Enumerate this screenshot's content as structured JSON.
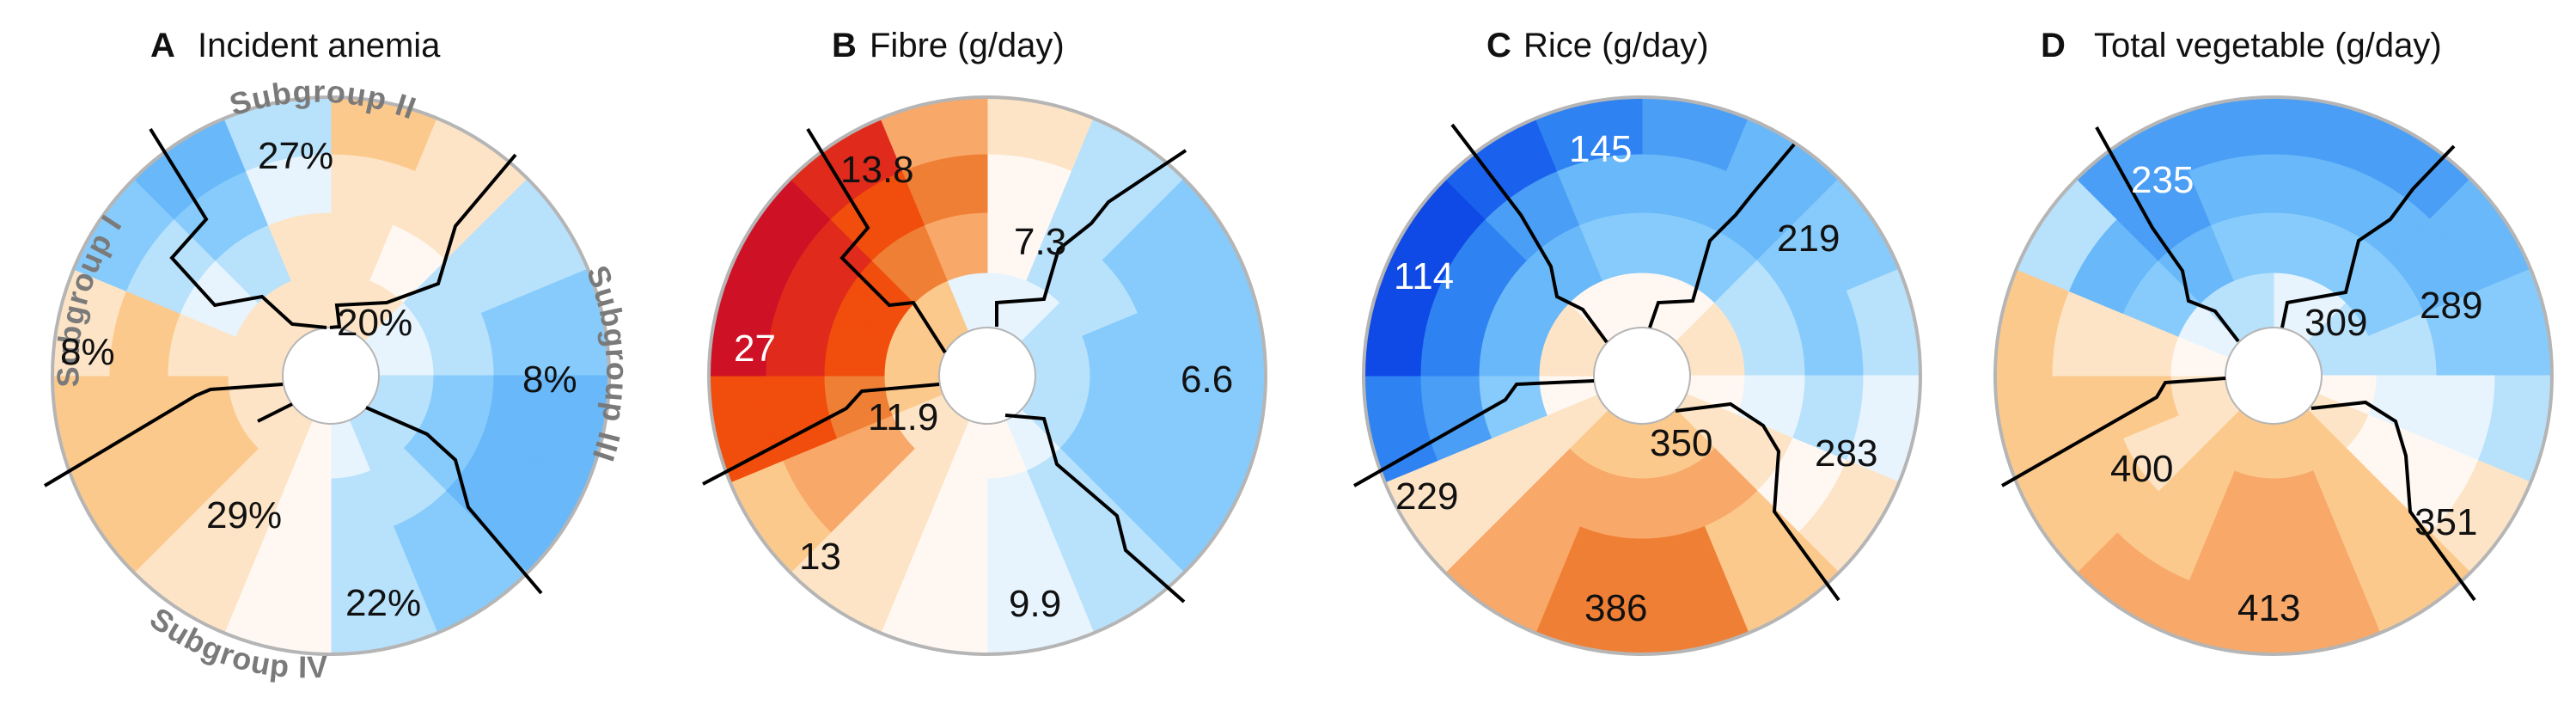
{
  "colors": {
    "orange_ramp": [
      "#fff8f2",
      "#fde4c6",
      "#fcc98d",
      "#f8a868",
      "#f07f36",
      "#f14d0c",
      "#e02b1c",
      "#cf1126"
    ],
    "blue_ramp": [
      "#e7f4fd",
      "#b8e1fc",
      "#86cbfb",
      "#69b8f9",
      "#4a9ef5",
      "#2f82f2",
      "#1a62ee",
      "#0f4ae6"
    ],
    "ring_outline": "#b5b5b5",
    "tree_line": "#000000",
    "subgroup_label": "#7a7a7a"
  },
  "chart_data": [
    {
      "type": "heatmap",
      "panel": "A",
      "title": "Incident anemia",
      "layout": "circular",
      "subgroups": [
        "Subgroup I",
        "Subgroup II",
        "Subgroup III",
        "Subgroup IV"
      ],
      "labels": [
        {
          "text": "27%",
          "subgroup": "Subgroup II"
        },
        {
          "text": "20%",
          "subgroup": "Subgroup II"
        },
        {
          "text": "8%",
          "subgroup": "Subgroup I"
        },
        {
          "text": "8%",
          "subgroup": "Subgroup III"
        },
        {
          "text": "29%",
          "subgroup": "Subgroup IV"
        },
        {
          "text": "22%",
          "subgroup": "Subgroup IV"
        }
      ]
    },
    {
      "type": "heatmap",
      "panel": "B",
      "title": "Fibre (g/day)",
      "layout": "circular",
      "labels": [
        "13.8",
        "7.3",
        "27",
        "6.6",
        "11.9",
        "13",
        "9.9"
      ]
    },
    {
      "type": "heatmap",
      "panel": "C",
      "title": "Rice (g/day)",
      "layout": "circular",
      "labels": [
        "145",
        "219",
        "114",
        "350",
        "283",
        "229",
        "386"
      ]
    },
    {
      "type": "heatmap",
      "panel": "D",
      "title": "Total vegetable (g/day)",
      "layout": "circular",
      "labels": [
        "235",
        "309",
        "289",
        "400",
        "351",
        "413"
      ]
    }
  ]
}
